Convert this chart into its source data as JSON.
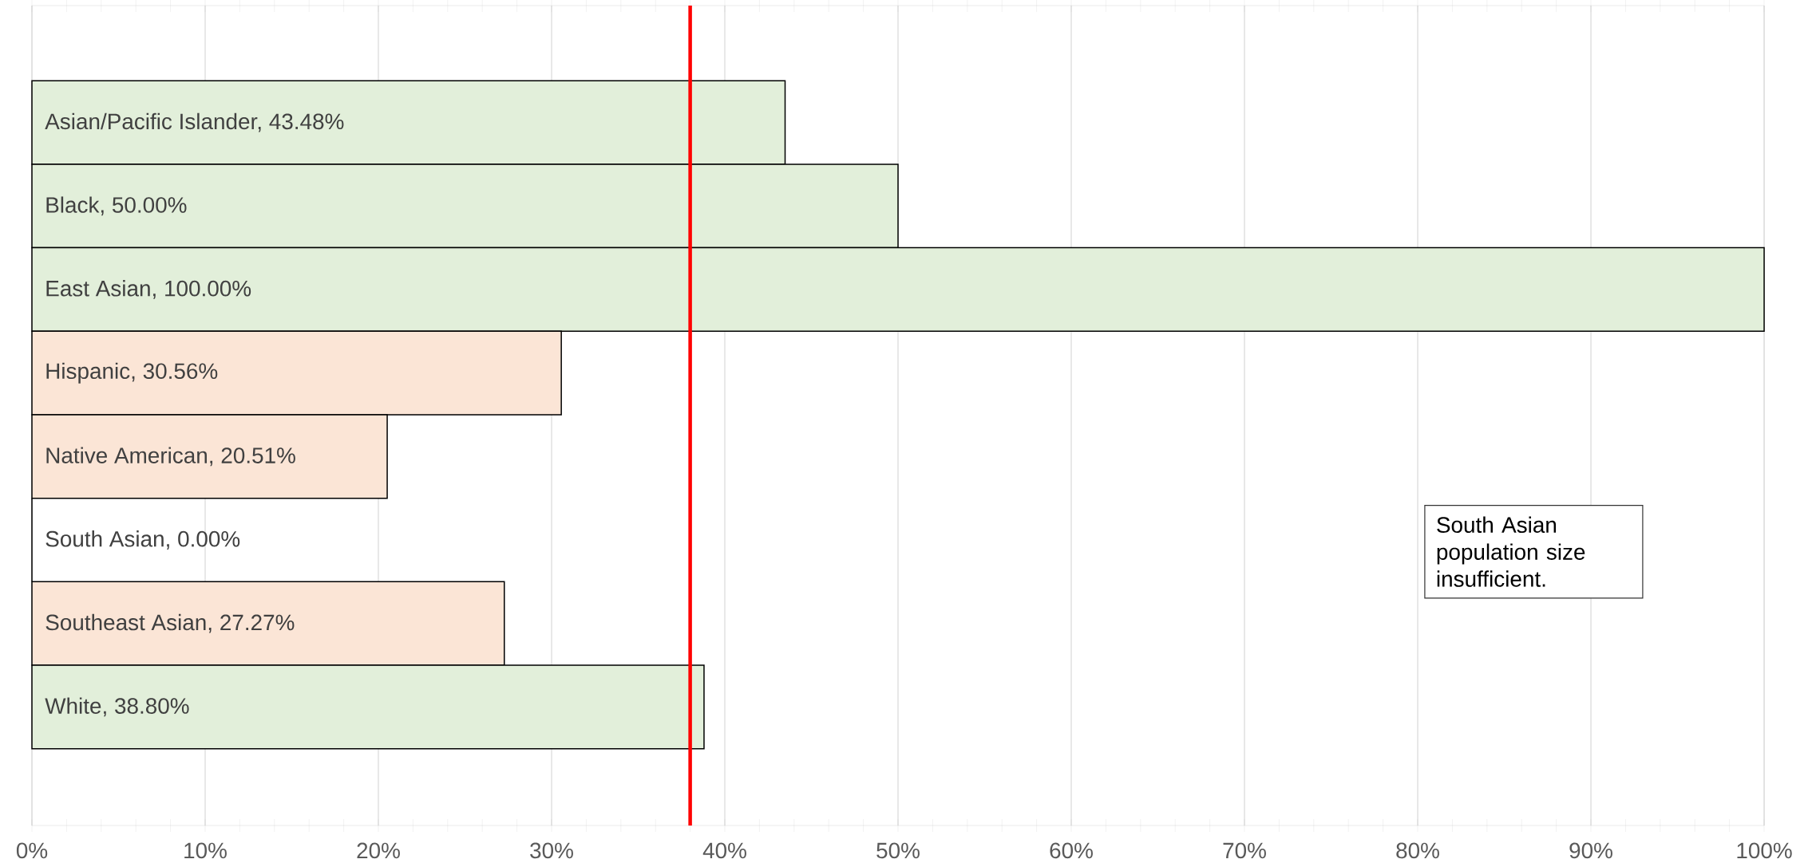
{
  "chart_data": {
    "type": "bar",
    "orientation": "horizontal",
    "categories": [
      "Asian/Pacific Islander, 43.48%",
      "Black, 50.00%",
      "East Asian, 100.00%",
      "Hispanic, 30.56%",
      "Native American, 20.51%",
      "South Asian, 0.00%",
      "Southeast Asian, 27.27%",
      "White, 38.80%"
    ],
    "values": [
      43.48,
      50.0,
      100.0,
      30.56,
      20.51,
      0.0,
      27.27,
      38.8
    ],
    "colors": [
      "#e2efda",
      "#e2efda",
      "#e2efda",
      "#fbe5d6",
      "#fbe5d6",
      "#fbe5d6",
      "#fbe5d6",
      "#e2efda"
    ],
    "xlim": [
      0,
      100
    ],
    "xticks": [
      {
        "value": 0,
        "label": "0%"
      },
      {
        "value": 10,
        "label": "10%"
      },
      {
        "value": 20,
        "label": "20%"
      },
      {
        "value": 30,
        "label": "30%"
      },
      {
        "value": 40,
        "label": "40%"
      },
      {
        "value": 50,
        "label": "50%"
      },
      {
        "value": 60,
        "label": "60%"
      },
      {
        "value": 70,
        "label": "70%"
      },
      {
        "value": 80,
        "label": "80%"
      },
      {
        "value": 90,
        "label": "90%"
      },
      {
        "value": 100,
        "label": "100%"
      }
    ],
    "grid": "x",
    "tick_labels": "x",
    "ref_lines": [
      {
        "axis": "x",
        "value": 38,
        "color": "#ff0000"
      }
    ],
    "annotations": [
      "South Asian population size insufficient."
    ]
  }
}
